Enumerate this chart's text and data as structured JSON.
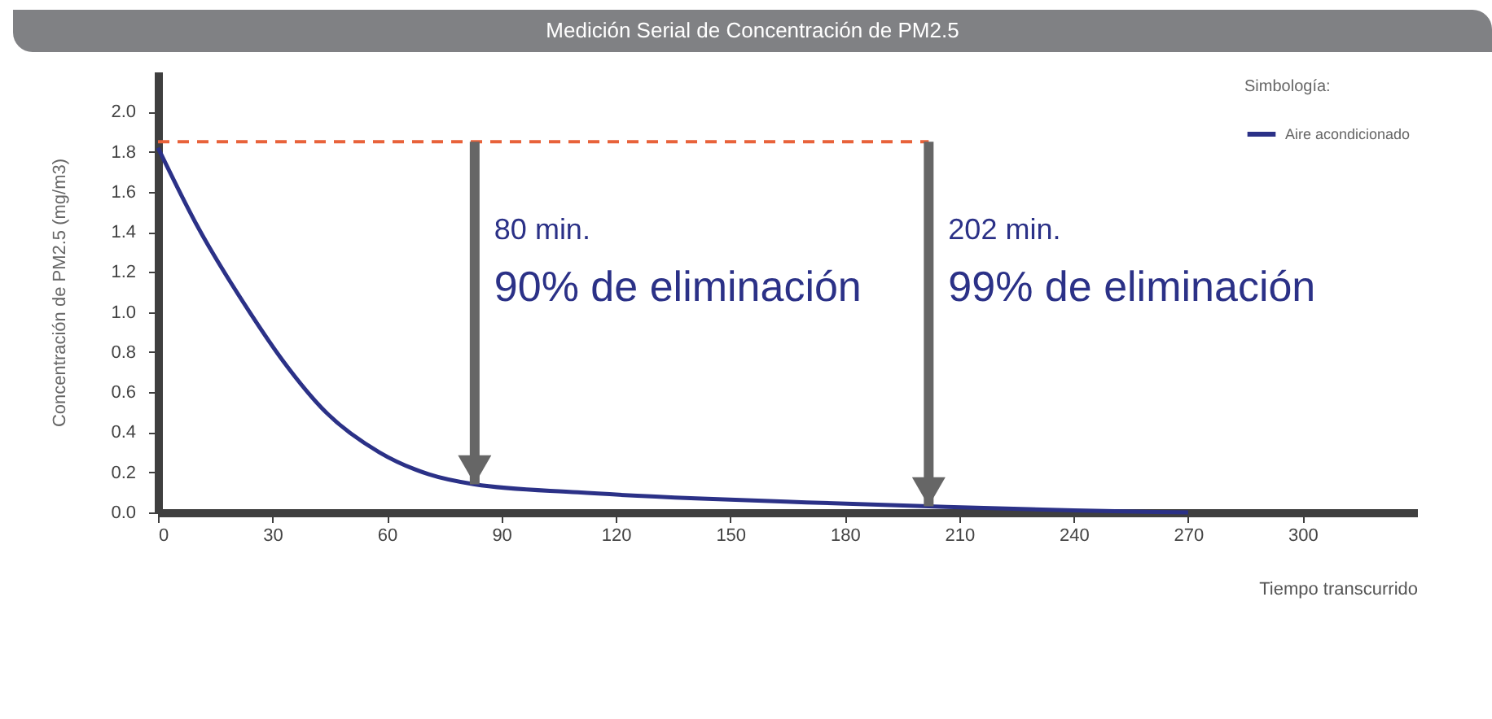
{
  "chart_data": {
    "type": "line",
    "title": "Medición Serial de Concentración de PM2.5",
    "xlabel": "Tiempo transcurrido",
    "ylabel": "Concentración de PM2.5 (mg/m3)",
    "legend_title": "Simbología:",
    "legend": "top right",
    "x": [
      0,
      10,
      24,
      33,
      44,
      58,
      71,
      83,
      110,
      141,
      170,
      202,
      240,
      270
    ],
    "series": [
      {
        "name": "Aire acondicionado",
        "color": "#2b3187",
        "values": [
          1.82,
          1.44,
          1.0,
          0.75,
          0.5,
          0.3,
          0.19,
          0.14,
          0.1,
          0.07,
          0.05,
          0.03,
          0.01,
          0.0
        ]
      }
    ],
    "xlim": [
      0,
      330
    ],
    "ylim": [
      0,
      2.2
    ],
    "xticks": [
      0,
      30,
      60,
      90,
      120,
      150,
      180,
      210,
      240,
      270,
      300
    ],
    "yticks": [
      {
        "value": 0,
        "label": "0.0"
      },
      0.2,
      0.4,
      0.6,
      0.8,
      {
        "value": 1,
        "label": "1.0"
      },
      1.2,
      1.4,
      1.6,
      1.8,
      {
        "value": 2,
        "label": "2.0"
      }
    ],
    "grid": false,
    "ref_lines": [
      {
        "axis": "y",
        "value": 1.85,
        "color": "#e8623a",
        "line_style": "dashed"
      },
      {
        "axis": "x",
        "value": 83,
        "label": "80 min.",
        "color": "#666666"
      },
      {
        "axis": "x",
        "value": 202,
        "label": "202 min.",
        "color": "#666666"
      }
    ],
    "annotations": [
      "90% de eliminación",
      "99% de eliminación"
    ]
  }
}
